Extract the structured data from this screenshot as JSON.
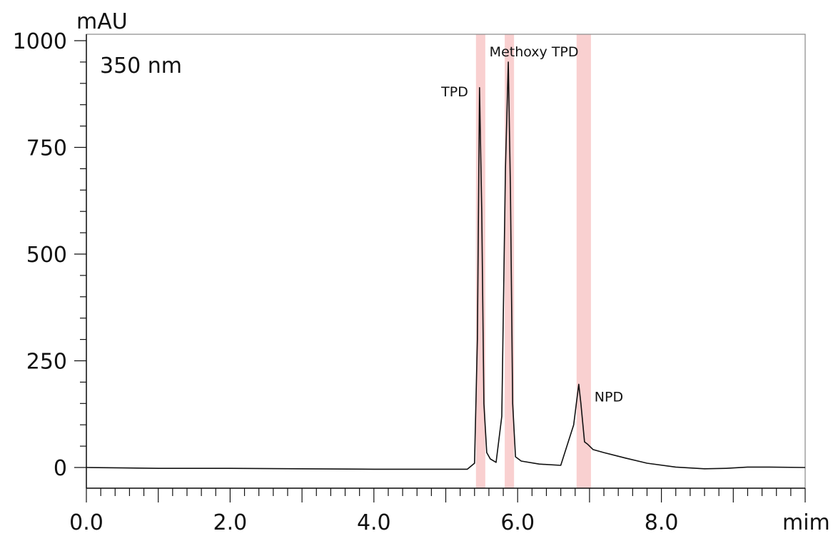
{
  "chart_data": {
    "type": "line",
    "ylabel": "mAU",
    "xlabel": "mim",
    "annotation": "350 nm",
    "xlim": [
      0.0,
      10.0
    ],
    "ylim": [
      -100,
      1000
    ],
    "x_ticks": [
      "0.0",
      "2.0",
      "4.0",
      "6.0",
      "8.0"
    ],
    "y_ticks": [
      "0",
      "250",
      "500",
      "750",
      "1000"
    ],
    "grid": false,
    "highlight_color": "#f8c8c8",
    "line_color": "#111111",
    "peaks": [
      {
        "label": "TPD",
        "x": 5.47,
        "y": 890,
        "band": [
          5.42,
          5.55
        ]
      },
      {
        "label": "Methoxy TPD",
        "x": 5.87,
        "y": 950,
        "band": [
          5.82,
          5.95
        ]
      },
      {
        "label": "NPD",
        "x": 6.85,
        "y": 195,
        "band": [
          6.82,
          7.02
        ]
      }
    ],
    "series": [
      {
        "x": [
          0.0,
          0.5,
          1.0,
          2.0,
          3.0,
          4.0,
          5.0,
          5.3,
          5.4,
          5.44,
          5.47,
          5.5,
          5.53,
          5.57,
          5.62,
          5.7,
          5.78,
          5.83,
          5.87,
          5.9,
          5.93,
          5.97,
          6.05,
          6.3,
          6.6,
          6.78,
          6.85,
          6.88,
          6.93,
          6.97,
          7.05,
          7.2,
          7.5,
          7.8,
          8.2,
          8.6,
          8.9,
          9.2,
          9.5,
          10.0
        ],
        "y": [
          0,
          -1,
          -2,
          -2,
          -3,
          -4,
          -4,
          -4,
          10,
          300,
          890,
          600,
          150,
          35,
          20,
          12,
          120,
          700,
          950,
          650,
          150,
          25,
          15,
          8,
          5,
          100,
          195,
          150,
          60,
          55,
          42,
          35,
          22,
          10,
          1,
          -3,
          -2,
          1,
          1,
          0
        ]
      }
    ]
  }
}
